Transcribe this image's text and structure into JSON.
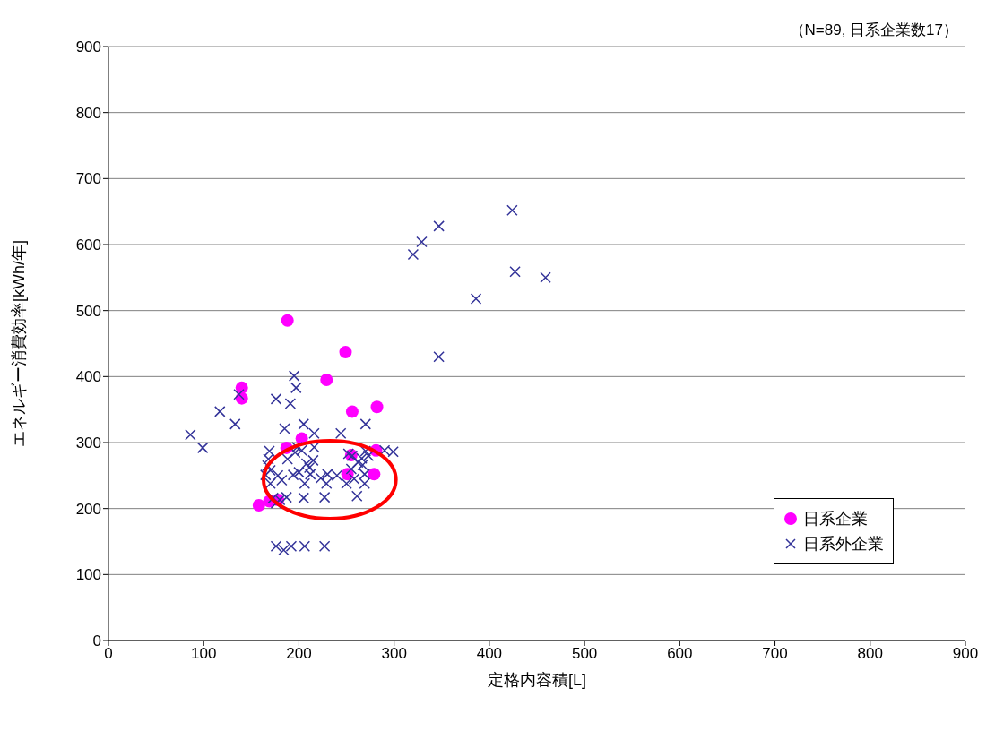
{
  "chart_data": {
    "type": "scatter",
    "xlabel": "定格内容積[L]",
    "ylabel": "エネルギー消費効率[kWh/年]",
    "annotations": [
      "（N=89, 日系企業数17）"
    ],
    "xlim": [
      0,
      900
    ],
    "xticks": [
      0,
      100,
      200,
      300,
      400,
      500,
      600,
      700,
      800,
      900
    ],
    "ylim": [
      0,
      900
    ],
    "yticks": [
      0,
      100,
      200,
      300,
      400,
      500,
      600,
      700,
      800,
      900
    ],
    "grid": "y",
    "legend": "right",
    "series": [
      {
        "name": "日系企業",
        "color": "#ff00ff",
        "marker": "circle",
        "x": [
          188,
          249,
          229,
          140,
          140,
          256,
          282,
          203,
          187,
          255,
          281,
          251,
          279,
          158,
          169,
          178
        ],
        "values": [
          485,
          437,
          395,
          383,
          367,
          347,
          354,
          306,
          292,
          281,
          288,
          252,
          252,
          205,
          211,
          213
        ]
      },
      {
        "name": "日系外企業",
        "color": "#333399",
        "marker": "cross",
        "x": [
          195,
          197,
          137,
          176,
          191,
          117,
          133,
          86,
          99,
          185,
          205,
          216,
          244,
          270,
          169,
          198,
          203,
          216,
          252,
          270,
          290,
          299,
          168,
          188,
          208,
          215,
          266,
          167,
          255,
          267,
          165,
          178,
          194,
          212,
          230,
          269,
          170,
          206,
          229,
          250,
          269,
          173,
          187,
          205,
          227,
          261,
          180,
          176,
          184,
          192,
          206,
          227,
          200,
          424,
          347,
          329,
          320,
          427,
          459,
          386,
          347,
          256,
          262,
          273,
          211,
          170,
          258,
          196,
          223,
          182,
          240,
          176
        ],
        "values": [
          401,
          383,
          373,
          366,
          359,
          347,
          328,
          312,
          292,
          321,
          328,
          314,
          314,
          328,
          287,
          293,
          288,
          293,
          283,
          287,
          288,
          286,
          275,
          275,
          268,
          273,
          276,
          265,
          260,
          266,
          251,
          250,
          251,
          252,
          252,
          252,
          238,
          238,
          238,
          238,
          238,
          216,
          217,
          216,
          217,
          219,
          213,
          143,
          137,
          143,
          143,
          143,
          255,
          652,
          628,
          604,
          585,
          559,
          550,
          518,
          430,
          280,
          270,
          280,
          262,
          258,
          245,
          285,
          246,
          243,
          250,
          208
        ]
      }
    ]
  }
}
